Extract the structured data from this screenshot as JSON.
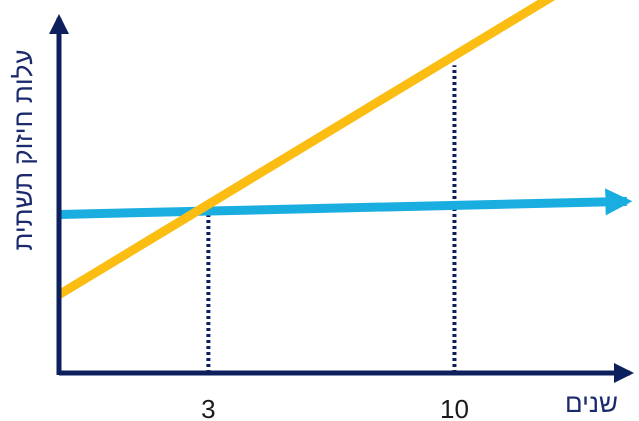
{
  "chart_data": {
    "type": "line",
    "xlabel": "שנים",
    "ylabel": "עלות חיזוק תשתית",
    "xlim": [
      -1.25,
      15.25
    ],
    "ylim": [
      0,
      10
    ],
    "x_ticks": [
      "3",
      "10"
    ],
    "grid": false,
    "legend": "none",
    "series": [
      {
        "color": "#1aaee0",
        "x": [
          -1.25,
          15.25
        ],
        "values": [
          4.25,
          4.6
        ]
      },
      {
        "color": "#fbbd12",
        "x": [
          -1.25,
          15.25
        ],
        "values": [
          2.1,
          11.5
        ]
      }
    ],
    "reference_lines": [
      {
        "x": 3,
        "y": 4.35
      },
      {
        "x": 10,
        "y": 8.25
      }
    ],
    "colors": {
      "axis": "#0d1f5c",
      "reference": "#0d1f5c"
    }
  }
}
